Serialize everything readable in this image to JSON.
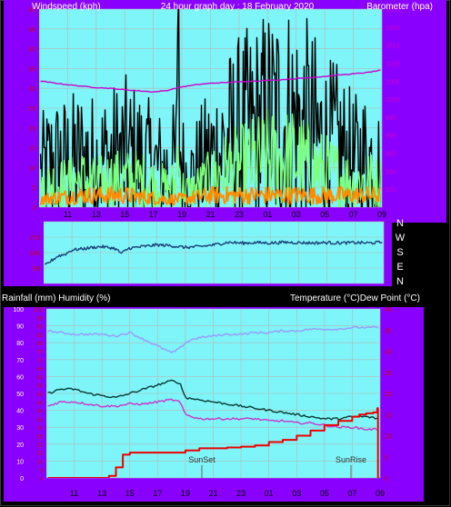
{
  "colors": {
    "outer_bg": "#000000",
    "panel_bg": "#8a00ff",
    "plot_bg": "#7ef5f8",
    "grid": "#b8b8b8",
    "axis_text": "#000000",
    "left_tick": "#cc0000",
    "baro_tick": "#cc00cc",
    "header_text": "#ffffff",
    "frame": "#444444"
  },
  "header": {
    "left": "Windspeed (kph)",
    "center": "24 hour graph day : 18 February 2020",
    "right": "Barometer (hpa)"
  },
  "humidity_header": {
    "left": "Rainfall (mm)  Humidity (%)",
    "right": "Temperature (°C)Dew Point (°C)"
  },
  "compass": [
    "N",
    "W",
    "S",
    "E",
    "N"
  ],
  "x_ticks": [
    "11",
    "13",
    "15",
    "17",
    "19",
    "21",
    "23",
    "01",
    "03",
    "05",
    "07",
    "09"
  ],
  "annotations": {
    "sunset": "SunSet",
    "sunrise": "SunRise"
  },
  "chart_data": [
    {
      "id": "wind",
      "type": "line",
      "x_range": [
        9,
        33
      ],
      "x_ticks": [
        "11",
        "13",
        "15",
        "17",
        "19",
        "21",
        "23",
        "01",
        "03",
        "05",
        "07",
        "09"
      ],
      "ylim_left": [
        0,
        50
      ],
      "yticks_left": [
        "0",
        "5",
        "10",
        "15",
        "20",
        "25",
        "30",
        "35",
        "40",
        "45",
        "50"
      ],
      "ylim_right": [
        970,
        1025
      ],
      "yticks_right": [
        "975",
        "980",
        "985",
        "990",
        "995",
        "1000",
        "1005",
        "1010",
        "1015",
        "1020",
        "1025"
      ],
      "series": [
        {
          "key": "gust",
          "axis": "left",
          "color": "#000000",
          "style": "noisy",
          "x": [
            9.1,
            10,
            11,
            12,
            13,
            14,
            15,
            16,
            17,
            18,
            18.6,
            18.7,
            18.8,
            19,
            19.5,
            20,
            21,
            22,
            23,
            24,
            25,
            26,
            27,
            28,
            29,
            30,
            31,
            32,
            32.9
          ],
          "y": [
            9,
            11,
            11,
            12,
            11,
            12,
            13,
            12,
            10,
            9,
            11,
            48,
            20,
            10,
            7,
            9,
            12,
            15,
            17,
            18,
            20,
            21,
            20,
            18,
            15,
            14,
            11,
            12,
            10
          ]
        },
        {
          "key": "average",
          "axis": "left",
          "color": "#7cff7c",
          "style": "noisy",
          "x": [
            9.1,
            10,
            11,
            12,
            13,
            14,
            15,
            16,
            17,
            18,
            18.6,
            18.7,
            18.8,
            19,
            19.5,
            20,
            21,
            22,
            23,
            24,
            25,
            26,
            27,
            28,
            29,
            30,
            31,
            32,
            32.9
          ],
          "y": [
            5,
            6,
            6,
            7,
            6,
            7,
            7,
            7,
            6,
            5,
            6,
            16,
            9,
            5,
            4,
            5,
            7,
            9,
            10,
            11,
            12,
            12,
            12,
            10,
            9,
            8,
            6,
            7,
            6
          ]
        },
        {
          "key": "wind_orange",
          "axis": "left",
          "color": "#ff8c00",
          "style": "noisy",
          "x": [
            9.1,
            12,
            15,
            18,
            19,
            21,
            24,
            27,
            30,
            32.9
          ],
          "y": [
            2,
            3,
            3,
            2,
            2,
            3,
            3,
            3,
            3,
            3
          ]
        },
        {
          "key": "barometer",
          "axis": "right",
          "color": "#cc00cc",
          "style": "smooth",
          "x": [
            9.1,
            10,
            11,
            12,
            13,
            14,
            15,
            16,
            17,
            18,
            18.5,
            19,
            20,
            21,
            22,
            23,
            24,
            25,
            26,
            27,
            28,
            29,
            30,
            31,
            32,
            32.9
          ],
          "y": [
            1005,
            1004.5,
            1004,
            1003.6,
            1003.2,
            1003,
            1002.6,
            1002.3,
            1002,
            1002.4,
            1003,
            1003.4,
            1004,
            1004.4,
            1004.6,
            1004.8,
            1005,
            1005.2,
            1005.4,
            1005.7,
            1006,
            1006.3,
            1006.7,
            1007,
            1007.4,
            1008
          ]
        }
      ]
    },
    {
      "id": "direction",
      "type": "line",
      "x_range": [
        9,
        33
      ],
      "ylim": [
        0,
        360
      ],
      "yticks": [
        "",
        "90",
        "180",
        "270",
        ""
      ],
      "series": [
        {
          "key": "direction",
          "color": "#1a3f7a",
          "style": "noisy",
          "x": [
            9.1,
            9.5,
            10,
            10.5,
            11,
            12,
            13,
            14,
            14.5,
            15,
            16,
            17,
            18,
            19,
            20,
            21,
            22,
            23,
            24,
            25,
            26,
            27,
            28,
            29,
            30,
            31,
            32,
            32.9
          ],
          "y": [
            105,
            130,
            160,
            170,
            195,
            205,
            215,
            205,
            175,
            205,
            215,
            225,
            220,
            210,
            215,
            225,
            240,
            235,
            238,
            236,
            240,
            238,
            236,
            238,
            236,
            238,
            236,
            240
          ]
        }
      ]
    },
    {
      "id": "humidity",
      "type": "line",
      "x_range": [
        9,
        33
      ],
      "ylim_left": [
        0,
        100
      ],
      "yticks_left": [
        "0",
        "5",
        "10",
        "15",
        "20",
        "25",
        "30",
        "35",
        "40",
        "45",
        "50",
        "55",
        "60",
        "65",
        "70",
        "75",
        "80",
        "85",
        "90",
        "95",
        "100"
      ],
      "yticks_left_red": [
        "0",
        "5",
        "10",
        "15",
        "20",
        "25",
        "30",
        "35",
        "40",
        "45",
        "50",
        "55",
        "60",
        "65",
        "70",
        "75",
        "80",
        "85",
        "90",
        "95",
        "100"
      ],
      "ylim_right": [
        0,
        40
      ],
      "yticks_right": [
        "0",
        "5",
        "10",
        "15",
        "20",
        "25",
        "30",
        "35",
        "40"
      ],
      "series": [
        {
          "key": "humidity",
          "axis": "left",
          "color": "#9999ff",
          "style": "noisy",
          "x": [
            9.1,
            10,
            11,
            12,
            13,
            14,
            15,
            15.5,
            16,
            17,
            18,
            18.5,
            19,
            19.5,
            20,
            21,
            22,
            23,
            24,
            25,
            26,
            27,
            28,
            29,
            30,
            31,
            32,
            32.9
          ],
          "y": [
            87,
            86,
            85,
            85,
            85,
            84,
            86,
            84,
            82,
            78,
            74,
            76,
            80,
            82,
            83,
            84,
            85,
            85,
            86,
            86,
            87,
            87,
            88,
            88,
            88,
            89,
            89,
            89
          ]
        },
        {
          "key": "temperature",
          "axis": "right",
          "color": "#0a3a35",
          "style": "noisy",
          "x": [
            9.1,
            10,
            11,
            12,
            13,
            14,
            15,
            16,
            17,
            18,
            18.6,
            19,
            20,
            21,
            22,
            23,
            24,
            25,
            26,
            27,
            28,
            29,
            30,
            31,
            32,
            32.9
          ],
          "y": [
            20,
            21,
            21,
            20,
            19.5,
            19,
            20,
            21,
            22,
            23,
            22.5,
            19,
            18.5,
            18,
            17.5,
            17,
            16.5,
            16,
            15.5,
            15,
            14.5,
            14,
            14,
            14.5,
            14.5,
            14
          ]
        },
        {
          "key": "dewpoint",
          "axis": "right",
          "color": "#cc33cc",
          "style": "noisy",
          "x": [
            9.1,
            10,
            11,
            12,
            13,
            14,
            15,
            16,
            17,
            18,
            18.6,
            19,
            20,
            21,
            22,
            23,
            24,
            25,
            26,
            27,
            28,
            29,
            30,
            31,
            32,
            32.9
          ],
          "y": [
            17,
            18,
            18,
            17.5,
            17,
            17,
            17.5,
            17.5,
            18,
            18.5,
            18,
            15,
            14,
            14,
            14,
            14,
            14,
            13.5,
            13.5,
            13,
            13,
            12.5,
            12,
            12,
            11.5,
            11.5
          ]
        },
        {
          "key": "rainfall",
          "axis": "right",
          "color": "#ee0000",
          "style": "step",
          "x": [
            9.1,
            13,
            13.5,
            14,
            14.5,
            15,
            16,
            17,
            18,
            18.5,
            19,
            19.5,
            20,
            21,
            22,
            23,
            24,
            25,
            26,
            27,
            28,
            29,
            30,
            31,
            31.5,
            32,
            32.5,
            32.8,
            32.85,
            32.95
          ],
          "y": [
            0,
            0,
            0.5,
            2.5,
            5.5,
            6,
            6,
            6,
            6,
            6,
            6.5,
            6.5,
            7,
            7,
            7.2,
            7.4,
            7.7,
            8.5,
            9,
            10,
            11.2,
            12.5,
            13.5,
            14.5,
            15,
            15.3,
            15.5,
            16.5,
            0,
            0
          ]
        }
      ]
    }
  ]
}
